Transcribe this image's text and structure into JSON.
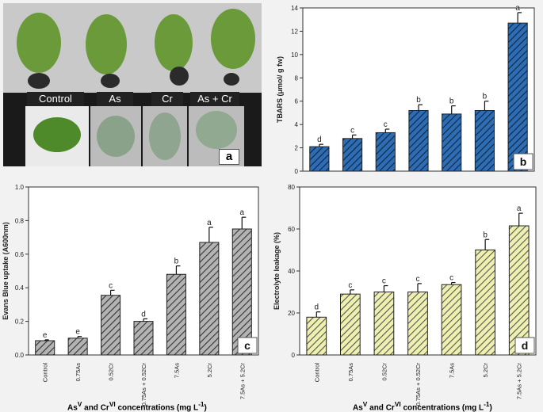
{
  "photo_panel": {
    "labels": [
      "Control",
      "As",
      "Cr",
      "As + Cr"
    ],
    "letter": "a"
  },
  "chart_data": [
    {
      "id": "b",
      "type": "bar",
      "panel_letter": "b",
      "ylabel": "TBARS (μmol/ g fw)",
      "ylim": [
        0,
        14
      ],
      "yticks": [
        0,
        2,
        4,
        6,
        8,
        10,
        12,
        14
      ],
      "values": [
        2.1,
        2.8,
        3.3,
        5.2,
        4.9,
        5.2,
        12.7
      ],
      "errors": [
        0.2,
        0.3,
        0.3,
        0.5,
        0.7,
        0.8,
        0.9
      ],
      "letters": [
        "d",
        "c",
        "c",
        "b",
        "b",
        "b",
        "a"
      ],
      "color": "#2e6db4",
      "hatch": "#0d2540"
    },
    {
      "id": "c",
      "type": "bar",
      "panel_letter": "c",
      "ylabel": "Evans Blue uptake (A600nm)",
      "ylim": [
        0,
        1.0
      ],
      "yticks": [
        0.0,
        0.2,
        0.4,
        0.6,
        0.8,
        1.0
      ],
      "categories": [
        "Control",
        "0.75As",
        "0.52Cr",
        "0.75As + 0.52Cr",
        "7.5As",
        "5.2Cr",
        "7.5As + 5.2Cr"
      ],
      "values": [
        0.085,
        0.1,
        0.355,
        0.2,
        0.48,
        0.67,
        0.75
      ],
      "errors": [
        0.005,
        0.01,
        0.03,
        0.015,
        0.05,
        0.09,
        0.07
      ],
      "letters": [
        "e",
        "e",
        "c",
        "d",
        "b",
        "a",
        "a"
      ],
      "color": "#b3b3b3",
      "hatch": "#333333",
      "xlabel": "AsV and CrVI concentrations (mg L-1)"
    },
    {
      "id": "d",
      "type": "bar",
      "panel_letter": "d",
      "ylabel": "Electrolyte leakage (%)",
      "ylim": [
        0,
        80
      ],
      "yticks": [
        0,
        20,
        40,
        60,
        80
      ],
      "categories": [
        "Control",
        "0.75As",
        "0.52Cr",
        "0.75As + 0.52Cr",
        "7.5As",
        "5.2Cr",
        "7.5As + 5.2Cr"
      ],
      "values": [
        18,
        29,
        30,
        30,
        33.5,
        50,
        61.5
      ],
      "errors": [
        2.5,
        2,
        3,
        4,
        1,
        5,
        6
      ],
      "letters": [
        "d",
        "c",
        "c",
        "c",
        "c",
        "b",
        "a"
      ],
      "color": "#eef0b0",
      "hatch": "#555555",
      "xlabel": "AsV and CrVI concentrations (mg L-1)"
    }
  ]
}
